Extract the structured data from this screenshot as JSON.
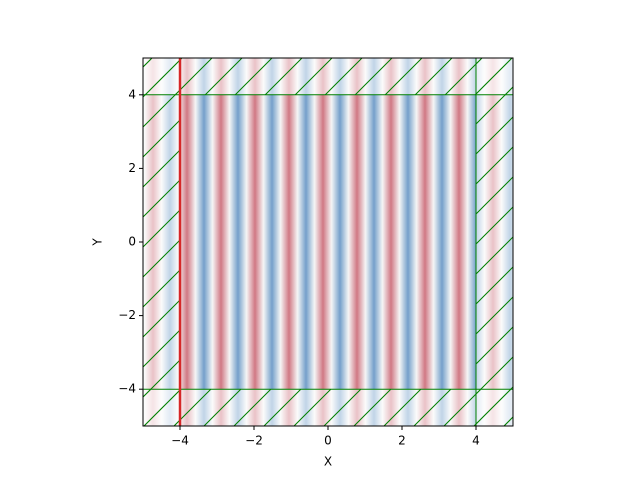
{
  "chart_data": {
    "type": "field",
    "xlabel": "X",
    "ylabel": "Y",
    "xlim": [
      -5,
      5
    ],
    "ylim": [
      -5,
      5
    ],
    "xticks": [
      {
        "value": -4,
        "label": "−4"
      },
      {
        "value": -2,
        "label": "−2"
      },
      0,
      2,
      4
    ],
    "yticks": [
      {
        "value": -4,
        "label": "−4"
      },
      {
        "value": -2,
        "label": "−2"
      },
      0,
      2,
      4
    ],
    "source_x": -4,
    "source_color": "#d62728",
    "pml_x": [
      -4,
      4
    ],
    "pml_y": [
      -4,
      4
    ],
    "pml_color": "#008000"
  }
}
